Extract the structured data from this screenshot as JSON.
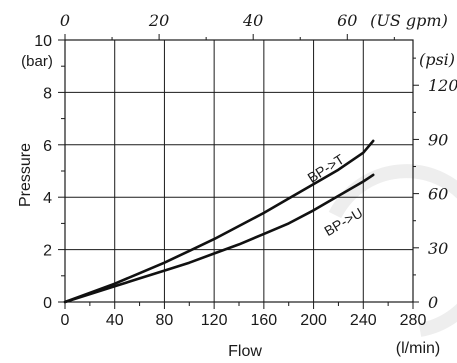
{
  "chart_data": {
    "type": "line",
    "xlabel": "Flow",
    "x_unit": "(l/min)",
    "ylabel": "Pressure",
    "y_unit": "(bar)",
    "xlim": [
      0,
      280
    ],
    "ylim": [
      0,
      10
    ],
    "x_ticks": [
      0,
      40,
      80,
      120,
      160,
      200,
      240,
      280
    ],
    "y_ticks": [
      0,
      2,
      4,
      6,
      8,
      10
    ],
    "grid": true,
    "secondary_x": {
      "unit": "(US gpm)",
      "ticks": [
        0,
        20,
        40,
        60
      ],
      "tick_labels": [
        "0",
        "20",
        "40",
        "60"
      ],
      "position": "top"
    },
    "secondary_y": {
      "unit": "(psi)",
      "ticks": [
        0,
        30,
        60,
        90,
        120
      ],
      "tick_labels": [
        "0",
        "30",
        "60",
        "90",
        "120"
      ],
      "position": "right"
    },
    "series": [
      {
        "name": "BP->T",
        "x": [
          0,
          20,
          40,
          60,
          80,
          100,
          120,
          140,
          160,
          180,
          200,
          220,
          240,
          248
        ],
        "y": [
          0,
          0.35,
          0.7,
          1.1,
          1.5,
          1.95,
          2.4,
          2.9,
          3.4,
          3.95,
          4.5,
          5.05,
          5.7,
          6.15
        ]
      },
      {
        "name": "BP->U",
        "x": [
          0,
          20,
          40,
          60,
          80,
          100,
          120,
          140,
          160,
          180,
          200,
          220,
          240,
          248
        ],
        "y": [
          0,
          0.3,
          0.6,
          0.9,
          1.2,
          1.5,
          1.85,
          2.2,
          2.6,
          3.0,
          3.5,
          4.05,
          4.6,
          4.85
        ]
      }
    ]
  }
}
